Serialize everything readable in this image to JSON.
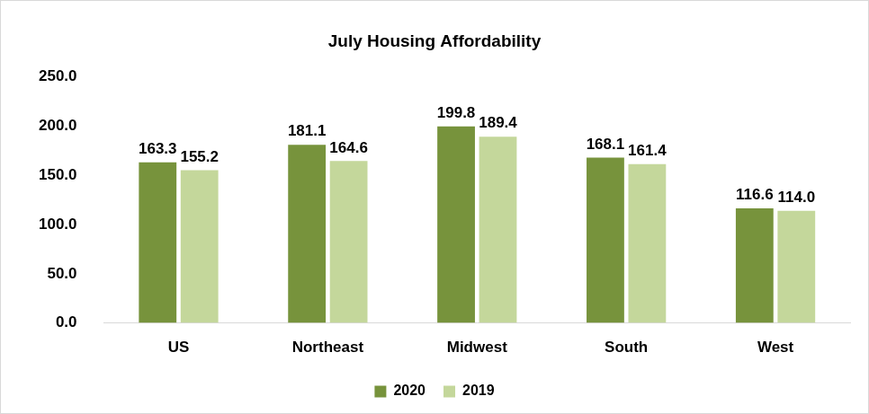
{
  "chart_data": {
    "type": "bar",
    "title": "July Housing Affordability",
    "categories": [
      "US",
      "Northeast",
      "Midwest",
      "South",
      "West"
    ],
    "series": [
      {
        "name": "2020",
        "color": "#77933c",
        "values": [
          163.3,
          181.1,
          199.8,
          168.1,
          116.6
        ],
        "value_labels": [
          "163.3",
          "181.1",
          "199.8",
          "168.1",
          "116.6"
        ]
      },
      {
        "name": "2019",
        "color": "#c4d79b",
        "values": [
          155.2,
          164.6,
          189.4,
          161.4,
          114.0
        ],
        "value_labels": [
          "155.2",
          "164.6",
          "189.4",
          "161.4",
          "114.0"
        ]
      }
    ],
    "ylim": [
      0,
      250
    ],
    "yticks": [
      {
        "value": 0,
        "label": "0.0"
      },
      {
        "value": 50,
        "label": "50.0"
      },
      {
        "value": 100,
        "label": "100.0"
      },
      {
        "value": 150,
        "label": "150.0"
      },
      {
        "value": 200,
        "label": "200.0"
      },
      {
        "value": 250,
        "label": "250.0"
      }
    ],
    "grid": false,
    "legend": "bottom",
    "data_labels": true
  }
}
